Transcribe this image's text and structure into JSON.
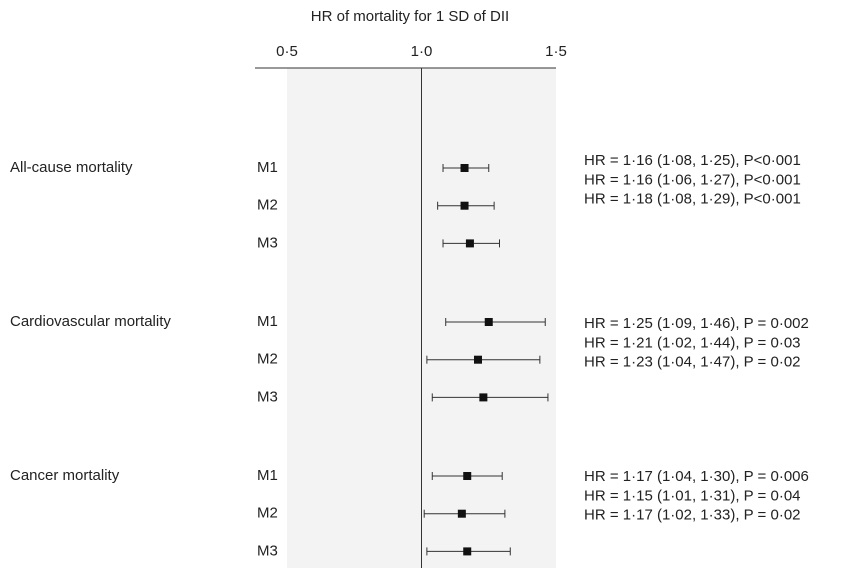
{
  "chart_data": {
    "type": "forest",
    "title": "HR of mortality for 1 SD of DII",
    "xlim": [
      0.5,
      1.5
    ],
    "xticks": [
      {
        "value": 0.5,
        "label": "0·5"
      },
      {
        "value": 1.0,
        "label": "1·0"
      },
      {
        "value": 1.5,
        "label": "1·5"
      }
    ],
    "reference": 1,
    "color": "#111111",
    "groups": [
      {
        "name": "All-cause mortality",
        "rows": [
          {
            "model": "M1",
            "hr": 1.16,
            "lo": 1.08,
            "hi": 1.25,
            "label": "HR = 1·16 (1·08, 1·25), P<0·001"
          },
          {
            "model": "M2",
            "hr": 1.16,
            "lo": 1.06,
            "hi": 1.27,
            "label": "HR = 1·16 (1·06, 1·27), P<0·001"
          },
          {
            "model": "M3",
            "hr": 1.18,
            "lo": 1.08,
            "hi": 1.29,
            "label": "HR = 1·18 (1·08, 1·29), P<0·001"
          }
        ]
      },
      {
        "name": "Cardiovascular mortality",
        "rows": [
          {
            "model": "M1",
            "hr": 1.25,
            "lo": 1.09,
            "hi": 1.46,
            "label": "HR = 1·25 (1·09, 1·46), P = 0·002"
          },
          {
            "model": "M2",
            "hr": 1.21,
            "lo": 1.02,
            "hi": 1.44,
            "label": "HR = 1·21 (1·02, 1·44), P = 0·03"
          },
          {
            "model": "M3",
            "hr": 1.23,
            "lo": 1.04,
            "hi": 1.47,
            "label": "HR = 1·23 (1·04, 1·47), P = 0·02"
          }
        ]
      },
      {
        "name": "Cancer mortality",
        "rows": [
          {
            "model": "M1",
            "hr": 1.17,
            "lo": 1.04,
            "hi": 1.3,
            "label": "HR = 1·17 (1·04, 1·30), P = 0·006"
          },
          {
            "model": "M2",
            "hr": 1.15,
            "lo": 1.01,
            "hi": 1.31,
            "label": "HR = 1·15 (1·01, 1·31), P = 0·04"
          },
          {
            "model": "M3",
            "hr": 1.17,
            "lo": 1.02,
            "hi": 1.33,
            "label": "HR = 1·17 (1·02, 1·33), P = 0·02"
          }
        ]
      }
    ]
  }
}
